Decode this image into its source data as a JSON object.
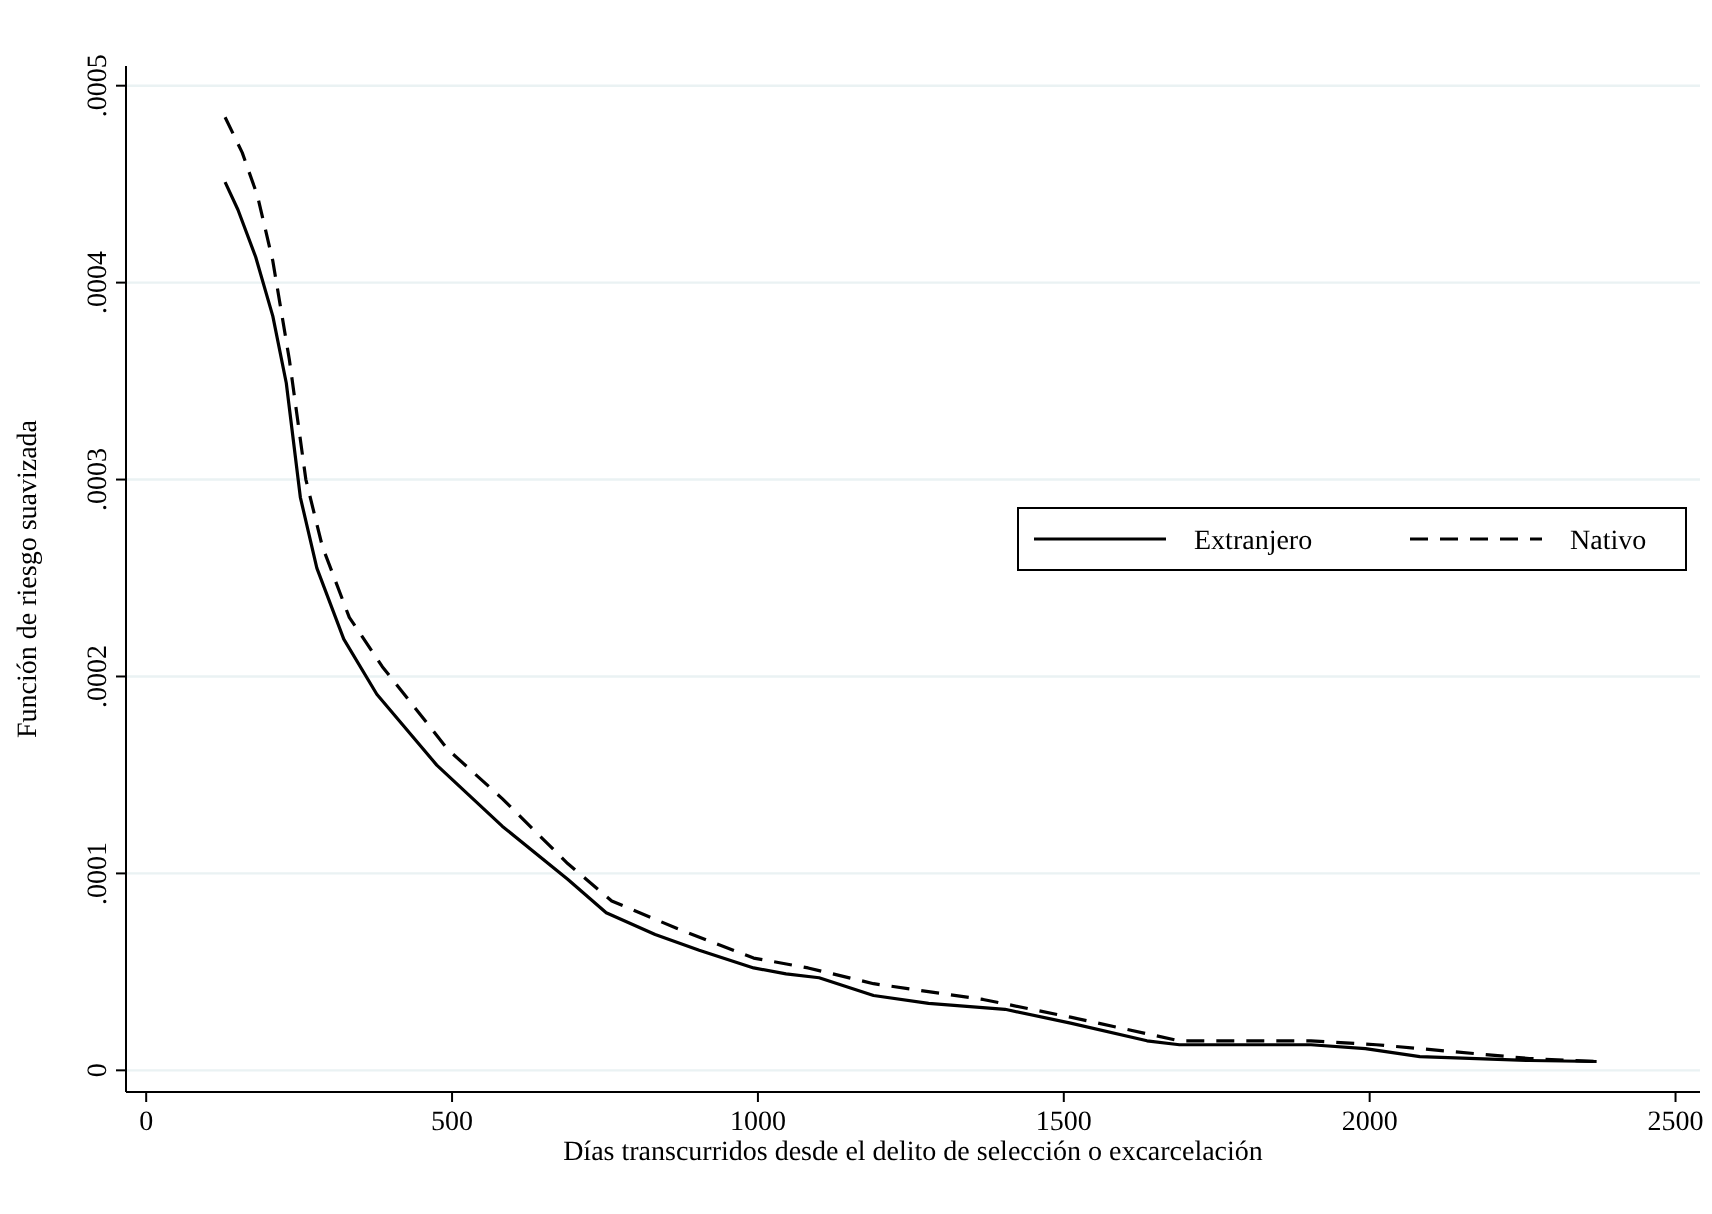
{
  "chart_data": {
    "type": "line",
    "xlabel": "Días transcurridos desde el delito de selección o excarcelación",
    "ylabel": "Función de riesgo suavizada",
    "xlim": [
      -33,
      2540
    ],
    "xticks": [
      0,
      500,
      1000,
      1500,
      2000,
      2500
    ],
    "ylim": [
      -1.1e-05,
      0.00051
    ],
    "yticks": [
      {
        "value": 0,
        "label": "0"
      },
      {
        "value": 0.0001,
        "label": ".0001"
      },
      {
        "value": 0.0002,
        "label": ".0002"
      },
      {
        "value": 0.0003,
        "label": ".0003"
      },
      {
        "value": 0.0004,
        "label": ".0004"
      },
      {
        "value": 0.0005,
        "label": ".0005"
      }
    ],
    "grid": "y",
    "legend": "right",
    "marker": "none",
    "series": [
      {
        "name": "Extranjero",
        "color": "#000000",
        "line_style": "solid",
        "x": [
          129,
          150,
          179,
          207,
          229,
          252,
          279,
          323,
          377,
          475,
          582,
          689,
          752,
          832,
          904,
          993,
          1046,
          1100,
          1189,
          1279,
          1404,
          1511,
          1636,
          1689,
          1904,
          1993,
          2082,
          2261,
          2371
        ],
        "values": [
          0.000451,
          0.000437,
          0.000413,
          0.000383,
          0.000349,
          0.000291,
          0.000255,
          0.000219,
          0.000191,
          0.000155,
          0.000124,
          9.7e-05,
          8e-05,
          6.9e-05,
          6.1e-05,
          5.2e-05,
          4.9e-05,
          4.7e-05,
          3.8e-05,
          3.4e-05,
          3.1e-05,
          2.4e-05,
          1.5e-05,
          1.3e-05,
          1.3e-05,
          1.1e-05,
          7e-06,
          5e-06,
          4.5e-06
        ]
      },
      {
        "name": "Nativo",
        "color": "#000000",
        "line_style": "dashed",
        "x": [
          129,
          157,
          182,
          207,
          234,
          261,
          288,
          332,
          386,
          493,
          582,
          689,
          761,
          868,
          993,
          1082,
          1189,
          1368,
          1511,
          1689,
          1904,
          2011,
          2261,
          2371
        ],
        "values": [
          0.000484,
          0.000466,
          0.000444,
          0.000411,
          0.000361,
          0.0003,
          0.000266,
          0.00023,
          0.000205,
          0.000163,
          0.000138,
          0.000105,
          8.6e-05,
          7.2e-05,
          5.7e-05,
          5.2e-05,
          4.4e-05,
          3.6e-05,
          2.7e-05,
          1.5e-05,
          1.5e-05,
          1.3e-05,
          6e-06,
          4.5e-06
        ]
      }
    ]
  }
}
